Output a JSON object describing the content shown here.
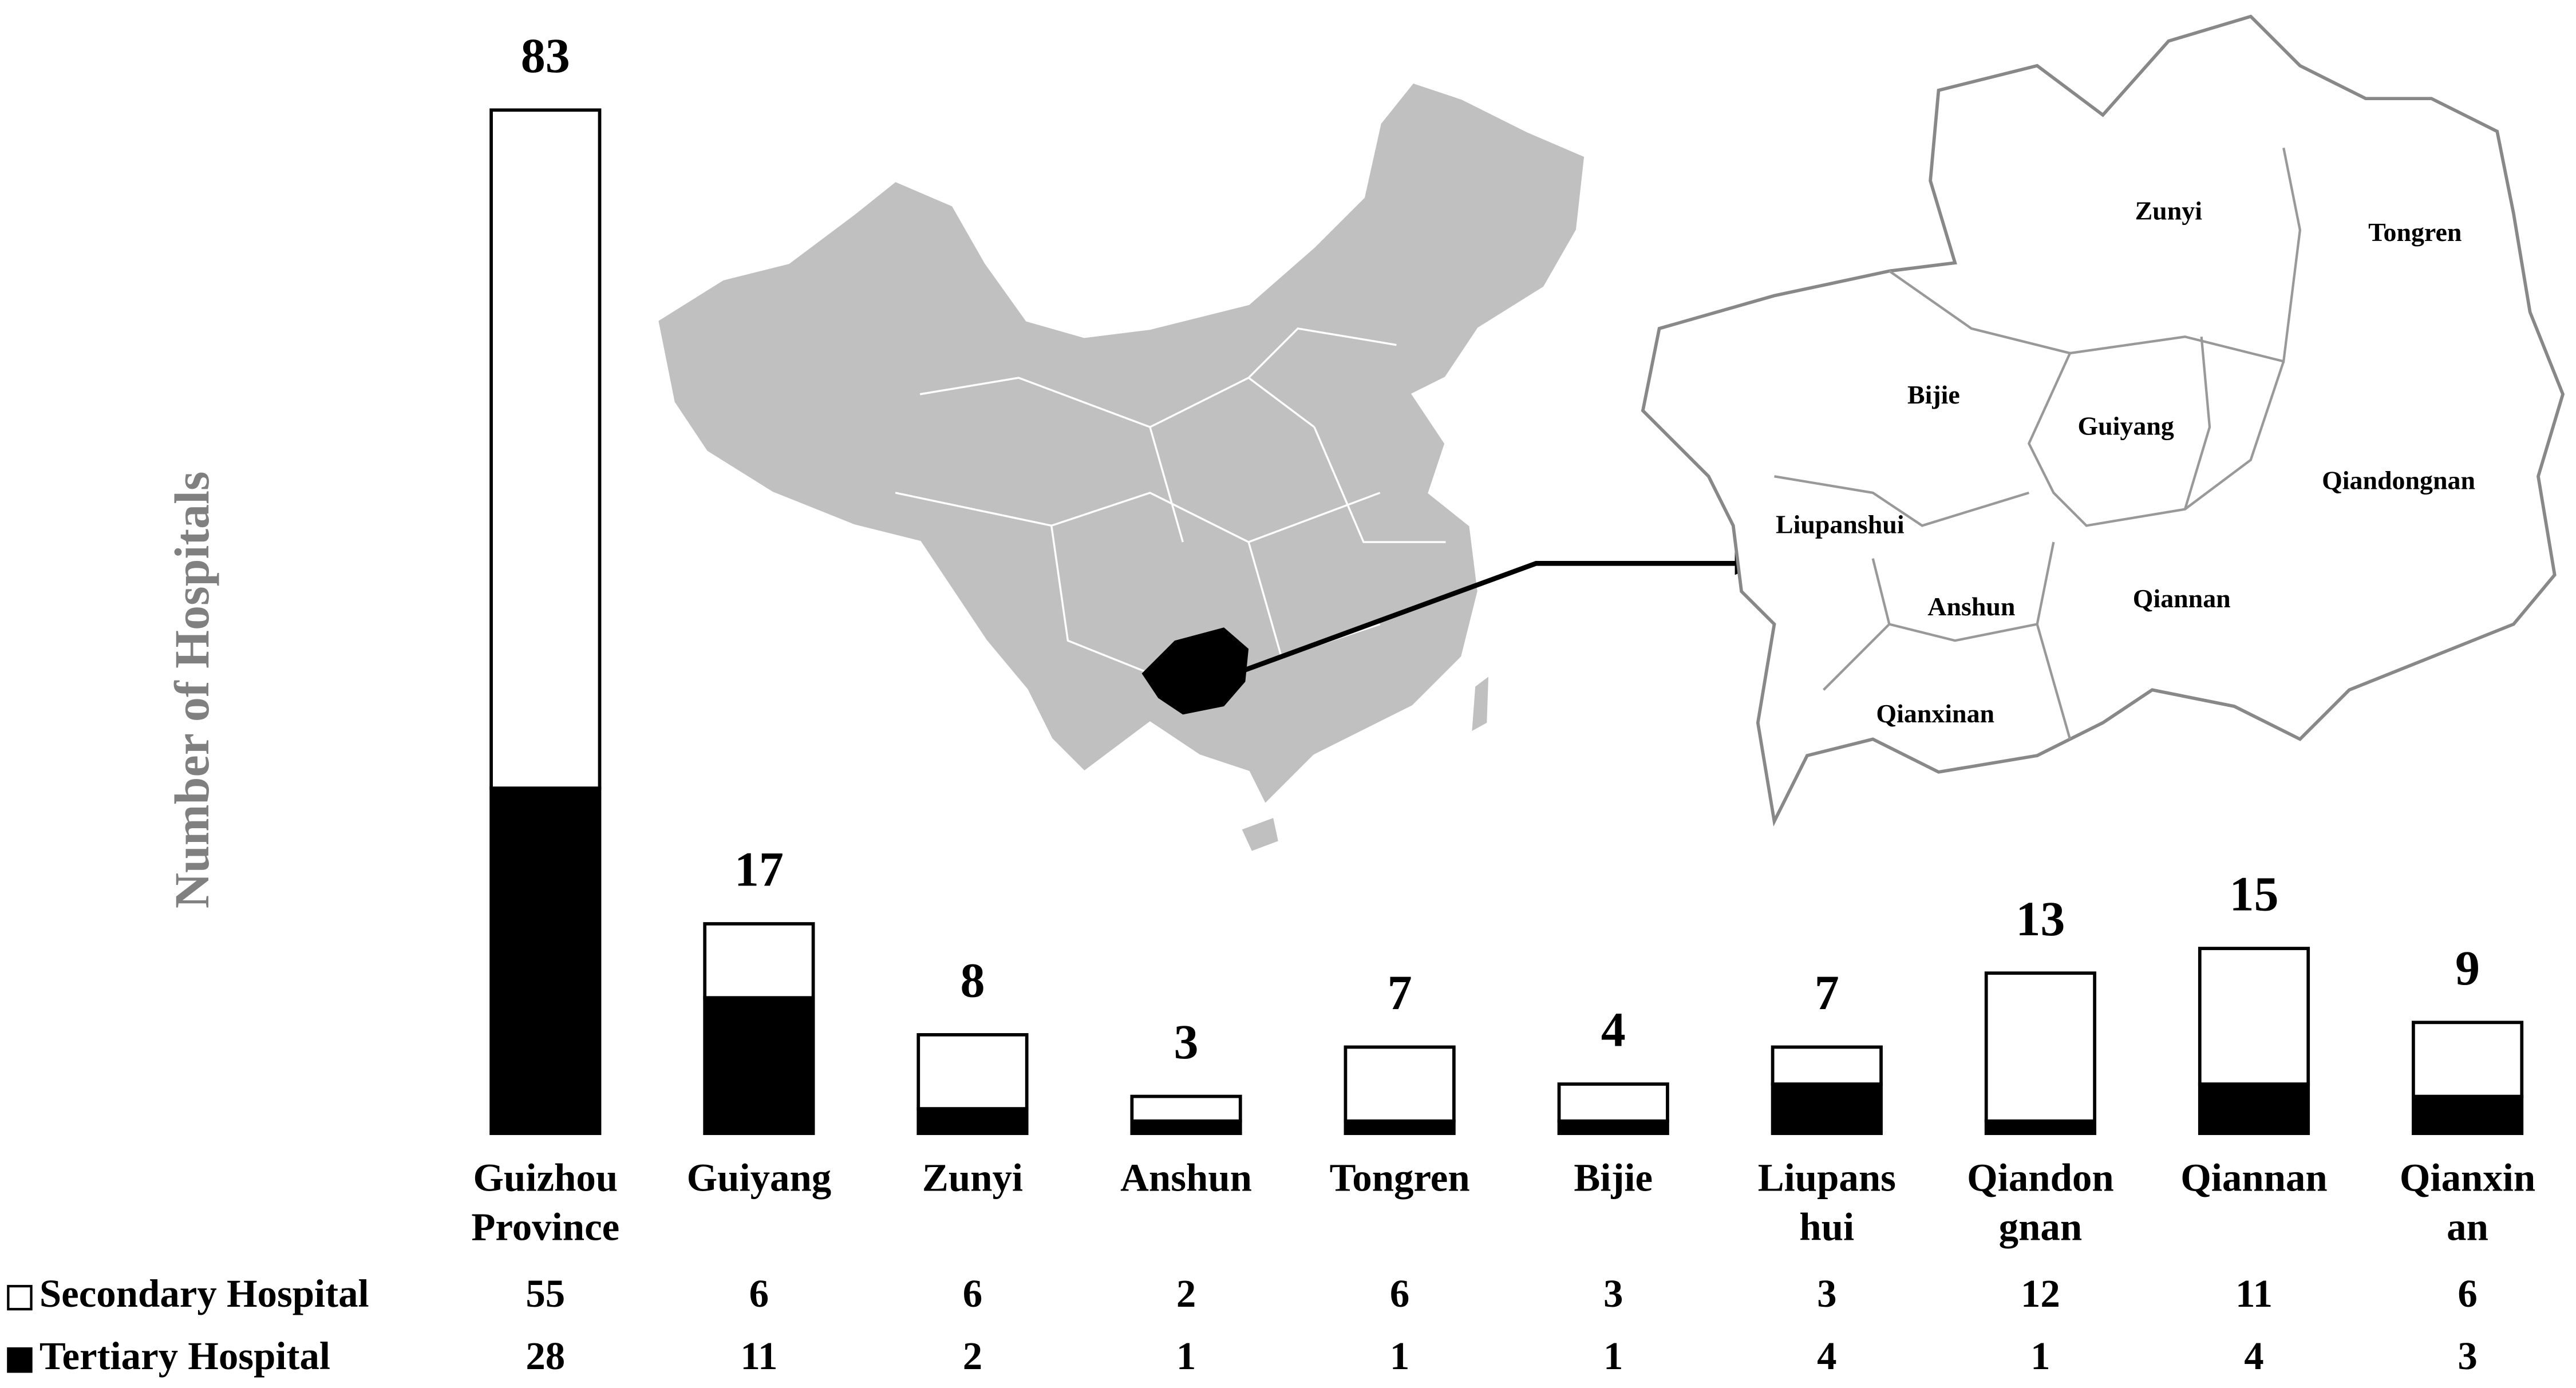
{
  "chart_data": {
    "type": "stacked-bar",
    "y_label": "Number of Hospitals",
    "categories": [
      "Guizhou Province",
      "Guiyang",
      "Zunyi",
      "Anshun",
      "Tongren",
      "Bijie",
      "Liupanshui",
      "Qiandongnan",
      "Qiannan",
      "Qianxinan"
    ],
    "series": [
      {
        "name": "Tertiary Hospital",
        "color": "#000000",
        "values": [
          28,
          11,
          2,
          1,
          1,
          1,
          4,
          1,
          4,
          3
        ]
      },
      {
        "name": "Secondary Hospital",
        "color": "#ffffff",
        "values": [
          55,
          6,
          6,
          2,
          6,
          3,
          3,
          12,
          11,
          6
        ]
      }
    ],
    "totals": [
      83,
      17,
      8,
      3,
      7,
      4,
      7,
      13,
      15,
      9
    ],
    "ylim": [
      0,
      83
    ]
  },
  "map": {
    "labels": [
      "Zunyi",
      "Tongren",
      "Bijie",
      "Guiyang",
      "Qiandongnan",
      "Liupanshui",
      "Anshun",
      "Qiannan",
      "Qianxinan"
    ]
  }
}
